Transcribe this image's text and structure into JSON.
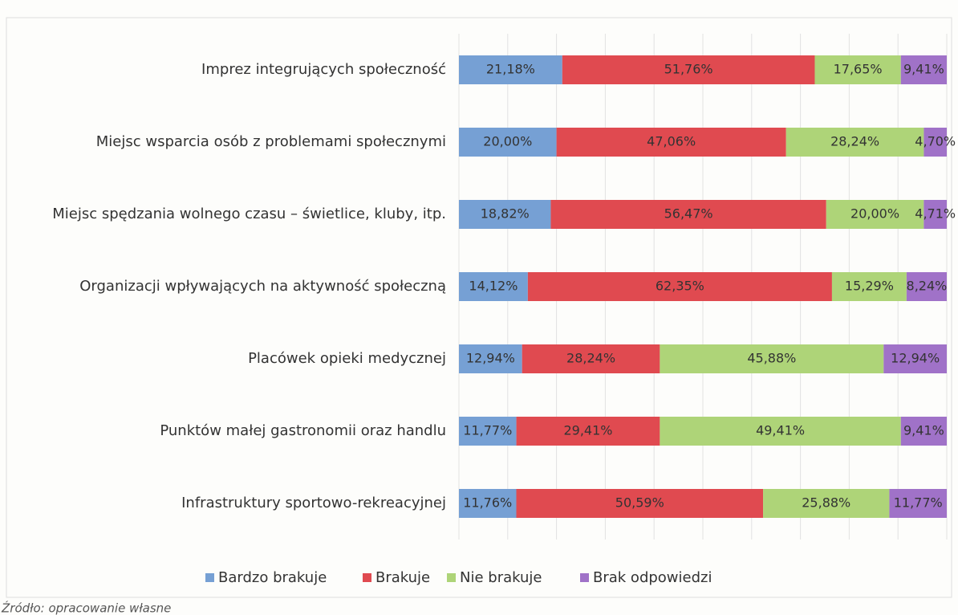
{
  "chart_data": {
    "type": "stacked_barh",
    "source": "Źródło: opracowanie własne",
    "categories": [
      "Imprez integrujących społeczność",
      "Miejsc wsparcia osób z problemami społecznymi",
      "Miejsc spędzania wolnego czasu – świetlice, kluby, itp.",
      "Organizacji wpływających na aktywność społeczną",
      "Placówek opieki medycznej",
      "Punktów małej gastronomii oraz handlu",
      "Infrastruktury sportowo-rekreacyjnej"
    ],
    "series": [
      {
        "name": "Bardzo brakuje",
        "color": "#76a0d4",
        "values": [
          21.18,
          20.0,
          18.82,
          14.12,
          12.94,
          11.77,
          11.76
        ],
        "value_labels": [
          "21,18%",
          "20,00%",
          "18,82%",
          "14,12%",
          "12,94%",
          "11,77%",
          "11,76%"
        ]
      },
      {
        "name": "Brakuje",
        "color": "#e04a50",
        "values": [
          51.76,
          47.06,
          56.47,
          62.35,
          28.24,
          29.41,
          50.59
        ],
        "value_labels": [
          "51,76%",
          "47,06%",
          "56,47%",
          "62,35%",
          "28,24%",
          "29,41%",
          "50,59%"
        ]
      },
      {
        "name": "Nie brakuje",
        "color": "#aed478",
        "values": [
          17.65,
          28.24,
          20.0,
          15.29,
          45.88,
          49.41,
          25.88
        ],
        "value_labels": [
          "17,65%",
          "28,24%",
          "20,00%",
          "15,29%",
          "45,88%",
          "49,41%",
          "25,88%"
        ]
      },
      {
        "name": "Brak odpowiedzi",
        "color": "#a072c8",
        "values": [
          9.41,
          4.7,
          4.71,
          8.24,
          12.94,
          9.41,
          11.77
        ],
        "value_labels": [
          "9,41%",
          "4,70%",
          "4,71%",
          "8,24%",
          "12,94%",
          "9,41%",
          "11,77%"
        ]
      }
    ],
    "xlim": [
      0,
      100
    ],
    "grid_step": 10,
    "grid": true
  }
}
